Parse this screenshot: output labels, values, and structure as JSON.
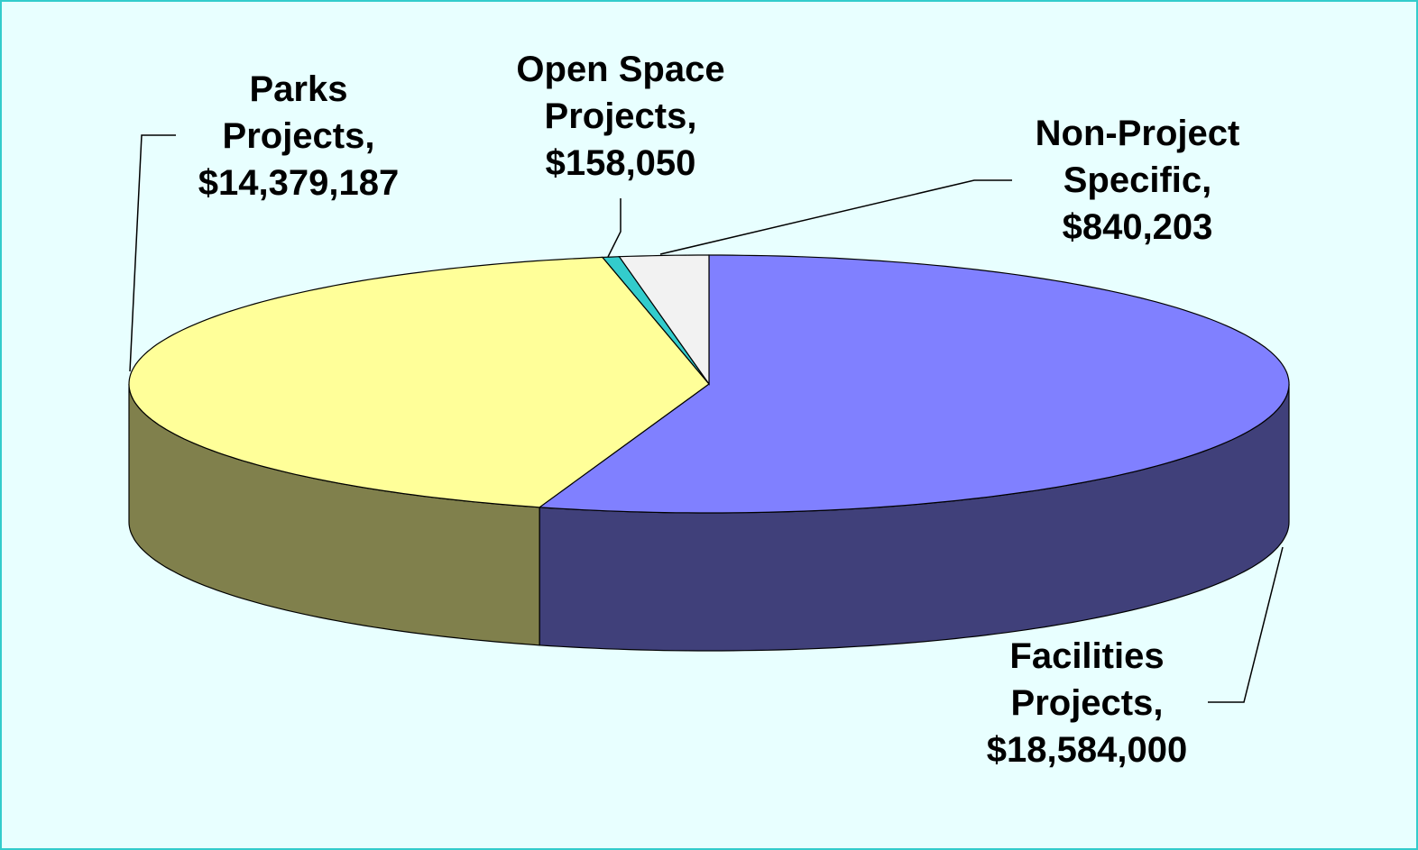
{
  "chart_data": {
    "type": "pie",
    "categories": [
      "Facilities Projects,",
      "Parks Projects,",
      "Open Space Projects,",
      "Non-Project Specific,"
    ],
    "values": [
      18584000,
      14379187,
      158050,
      840203
    ],
    "value_labels": [
      "$18,584,000",
      "$14,379,187",
      "$158,050",
      "$840,203"
    ],
    "colors": [
      "#8080ff",
      "#ffff99",
      "#33cccc",
      "#f2f2f2"
    ],
    "side_colors": [
      "#40407a",
      "#80804c",
      "#1a8080",
      "#999999"
    ]
  }
}
